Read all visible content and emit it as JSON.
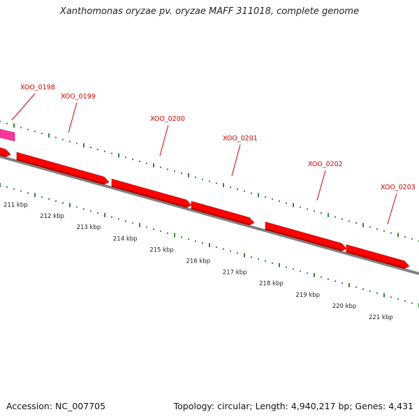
{
  "title": "Xanthomonas oryzae pv. oryzae MAFF 311018, complete genome",
  "footer": {
    "accession": "Accession: NC_007705",
    "summary": "Topology: circular; Length: 4,940,217 bp; Genes: 4,431"
  },
  "genes": [
    {
      "label": "XOO_0198",
      "color": "#ff3399",
      "strand": "forward",
      "kind": "box"
    },
    {
      "label": "XOO_0199",
      "color": "#ff0000",
      "strand": "forward"
    },
    {
      "label": "XOO_0200",
      "color": "#ff0000",
      "strand": "forward"
    },
    {
      "label": "XOO_0201",
      "color": "#ff0000",
      "strand": "forward"
    },
    {
      "label": "XOO_0202",
      "color": "#ff0000",
      "strand": "forward"
    },
    {
      "label": "XOO_0203",
      "color": "#ff0000",
      "strand": "forward"
    }
  ],
  "ruler": {
    "ticks": [
      "211 kbp",
      "212 kbp",
      "213 kbp",
      "214 kbp",
      "215 kbp",
      "216 kbp",
      "217 kbp",
      "218 kbp",
      "219 kbp",
      "220 kbp",
      "221 kbp"
    ],
    "color": "#2e8b2e"
  },
  "backbone_color": "#808080",
  "label_color": "#cc0000"
}
